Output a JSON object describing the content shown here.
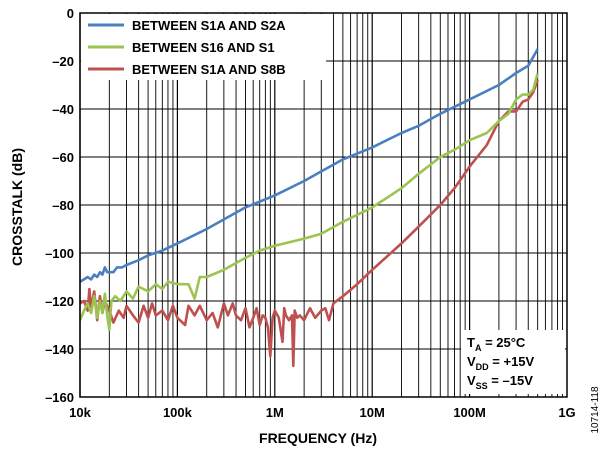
{
  "chart_data": {
    "type": "line",
    "title": "",
    "xlabel": "FREQUENCY (Hz)",
    "ylabel": "CROSSTALK (dB)",
    "x_scale": "log",
    "xlim": [
      10000,
      1000000000
    ],
    "ylim": [
      -160,
      0
    ],
    "grid": true,
    "legend_position": "top-left",
    "x_tick_labels": [
      {
        "value": 10000,
        "label": "10k"
      },
      {
        "value": 100000,
        "label": "100k"
      },
      {
        "value": 1000000,
        "label": "1M"
      },
      {
        "value": 10000000,
        "label": "10M"
      },
      {
        "value": 100000000,
        "label": "100M"
      },
      {
        "value": 1000000000,
        "label": "1G"
      }
    ],
    "y_tick_labels": [
      {
        "value": 0,
        "label": "0"
      },
      {
        "value": -20,
        "label": "–20"
      },
      {
        "value": -40,
        "label": "–40"
      },
      {
        "value": -60,
        "label": "–60"
      },
      {
        "value": -80,
        "label": "–80"
      },
      {
        "value": -100,
        "label": "–100"
      },
      {
        "value": -120,
        "label": "–120"
      },
      {
        "value": -140,
        "label": "–140"
      },
      {
        "value": -160,
        "label": "–160"
      }
    ],
    "series": [
      {
        "name": "BETWEEN S1A AND S2A",
        "color": "#4a7fc1",
        "points": [
          [
            10000,
            -112
          ],
          [
            11000,
            -111
          ],
          [
            12000,
            -110
          ],
          [
            13000,
            -111
          ],
          [
            14000,
            -109
          ],
          [
            15000,
            -110
          ],
          [
            16000,
            -108
          ],
          [
            17000,
            -109
          ],
          [
            18000,
            -106
          ],
          [
            19000,
            -108
          ],
          [
            20000,
            -108
          ],
          [
            22000,
            -108
          ],
          [
            24000,
            -106
          ],
          [
            27000,
            -106
          ],
          [
            30000,
            -105
          ],
          [
            40000,
            -103
          ],
          [
            50000,
            -101
          ],
          [
            70000,
            -99
          ],
          [
            100000,
            -96
          ],
          [
            200000,
            -90
          ],
          [
            300000,
            -86
          ],
          [
            500000,
            -81
          ],
          [
            1000000,
            -76
          ],
          [
            2000000,
            -70
          ],
          [
            3000000,
            -66
          ],
          [
            5000000,
            -61
          ],
          [
            10000000,
            -56
          ],
          [
            20000000,
            -50
          ],
          [
            30000000,
            -47
          ],
          [
            50000000,
            -42
          ],
          [
            100000000,
            -36
          ],
          [
            200000000,
            -30
          ],
          [
            300000000,
            -25
          ],
          [
            400000000,
            -22
          ],
          [
            500000000,
            -15
          ]
        ]
      },
      {
        "name": "BETWEEN S16 AND S1",
        "color": "#9bc450",
        "points": [
          [
            10000,
            -128
          ],
          [
            11000,
            -124
          ],
          [
            12000,
            -121
          ],
          [
            13000,
            -125
          ],
          [
            14000,
            -118
          ],
          [
            15000,
            -127
          ],
          [
            16000,
            -120
          ],
          [
            17000,
            -125
          ],
          [
            18000,
            -117
          ],
          [
            19000,
            -126
          ],
          [
            20000,
            -132
          ],
          [
            21000,
            -120
          ],
          [
            23000,
            -118
          ],
          [
            26000,
            -120
          ],
          [
            30000,
            -116
          ],
          [
            35000,
            -119
          ],
          [
            40000,
            -114
          ],
          [
            50000,
            -116
          ],
          [
            60000,
            -113
          ],
          [
            70000,
            -115
          ],
          [
            80000,
            -112
          ],
          [
            100000,
            -113
          ],
          [
            130000,
            -113
          ],
          [
            150000,
            -119
          ],
          [
            170000,
            -110
          ],
          [
            200000,
            -110
          ],
          [
            300000,
            -107
          ],
          [
            500000,
            -102
          ],
          [
            700000,
            -99
          ],
          [
            1000000,
            -97
          ],
          [
            2000000,
            -94
          ],
          [
            3000000,
            -92
          ],
          [
            5000000,
            -87
          ],
          [
            10000000,
            -81
          ],
          [
            20000000,
            -73
          ],
          [
            30000000,
            -67
          ],
          [
            50000000,
            -60
          ],
          [
            70000000,
            -57
          ],
          [
            100000000,
            -53
          ],
          [
            150000000,
            -50
          ],
          [
            200000000,
            -45
          ],
          [
            250000000,
            -42
          ],
          [
            300000000,
            -36
          ],
          [
            350000000,
            -34
          ],
          [
            400000000,
            -34
          ],
          [
            450000000,
            -32
          ],
          [
            500000000,
            -25
          ]
        ]
      },
      {
        "name": "BETWEEN S1A AND S8B",
        "color": "#c0504d",
        "points": [
          [
            10000,
            -121
          ],
          [
            11000,
            -120
          ],
          [
            12000,
            -124
          ],
          [
            12500,
            -115
          ],
          [
            13000,
            -123
          ],
          [
            14000,
            -116
          ],
          [
            15000,
            -128
          ],
          [
            16000,
            -118
          ],
          [
            17000,
            -125
          ],
          [
            18000,
            -120
          ],
          [
            20000,
            -124
          ],
          [
            22000,
            -129
          ],
          [
            25000,
            -124
          ],
          [
            28000,
            -127
          ],
          [
            30000,
            -122
          ],
          [
            35000,
            -126
          ],
          [
            40000,
            -129
          ],
          [
            45000,
            -122
          ],
          [
            50000,
            -127
          ],
          [
            55000,
            -121
          ],
          [
            60000,
            -126
          ],
          [
            70000,
            -124
          ],
          [
            80000,
            -128
          ],
          [
            90000,
            -122
          ],
          [
            100000,
            -127
          ],
          [
            120000,
            -130
          ],
          [
            130000,
            -122
          ],
          [
            150000,
            -126
          ],
          [
            170000,
            -122
          ],
          [
            200000,
            -128
          ],
          [
            230000,
            -125
          ],
          [
            260000,
            -131
          ],
          [
            300000,
            -121
          ],
          [
            330000,
            -126
          ],
          [
            370000,
            -121
          ],
          [
            400000,
            -126
          ],
          [
            450000,
            -128
          ],
          [
            500000,
            -123
          ],
          [
            550000,
            -131
          ],
          [
            600000,
            -127
          ],
          [
            650000,
            -123
          ],
          [
            700000,
            -130
          ],
          [
            750000,
            -126
          ],
          [
            800000,
            -127
          ],
          [
            850000,
            -131
          ],
          [
            900000,
            -143
          ],
          [
            950000,
            -127
          ],
          [
            1000000,
            -124
          ],
          [
            1100000,
            -127
          ],
          [
            1200000,
            -137
          ],
          [
            1250000,
            -123
          ],
          [
            1300000,
            -126
          ],
          [
            1400000,
            -128
          ],
          [
            1500000,
            -126
          ],
          [
            1550000,
            -147
          ],
          [
            1600000,
            -124
          ],
          [
            1700000,
            -127
          ],
          [
            1800000,
            -126
          ],
          [
            2000000,
            -128
          ],
          [
            2300000,
            -123
          ],
          [
            2600000,
            -127
          ],
          [
            3000000,
            -124
          ],
          [
            3300000,
            -123
          ],
          [
            3600000,
            -128
          ],
          [
            4000000,
            -121
          ],
          [
            5000000,
            -118
          ],
          [
            7000000,
            -113
          ],
          [
            10000000,
            -107
          ],
          [
            20000000,
            -96
          ],
          [
            30000000,
            -89
          ],
          [
            50000000,
            -80
          ],
          [
            70000000,
            -73
          ],
          [
            100000000,
            -64
          ],
          [
            150000000,
            -55
          ],
          [
            200000000,
            -45
          ],
          [
            250000000,
            -41
          ],
          [
            300000000,
            -41
          ],
          [
            350000000,
            -37
          ],
          [
            400000000,
            -36
          ],
          [
            450000000,
            -33
          ],
          [
            500000000,
            -28
          ]
        ]
      }
    ],
    "annotations": {
      "conditions": [
        {
          "main": "T",
          "sub": "A",
          "rest": " = 25°C"
        },
        {
          "main": "V",
          "sub": "DD",
          "rest": " = +15V"
        },
        {
          "main": "V",
          "sub": "SS",
          "rest": " = –15V"
        }
      ],
      "figure_id": "10714-118"
    }
  }
}
